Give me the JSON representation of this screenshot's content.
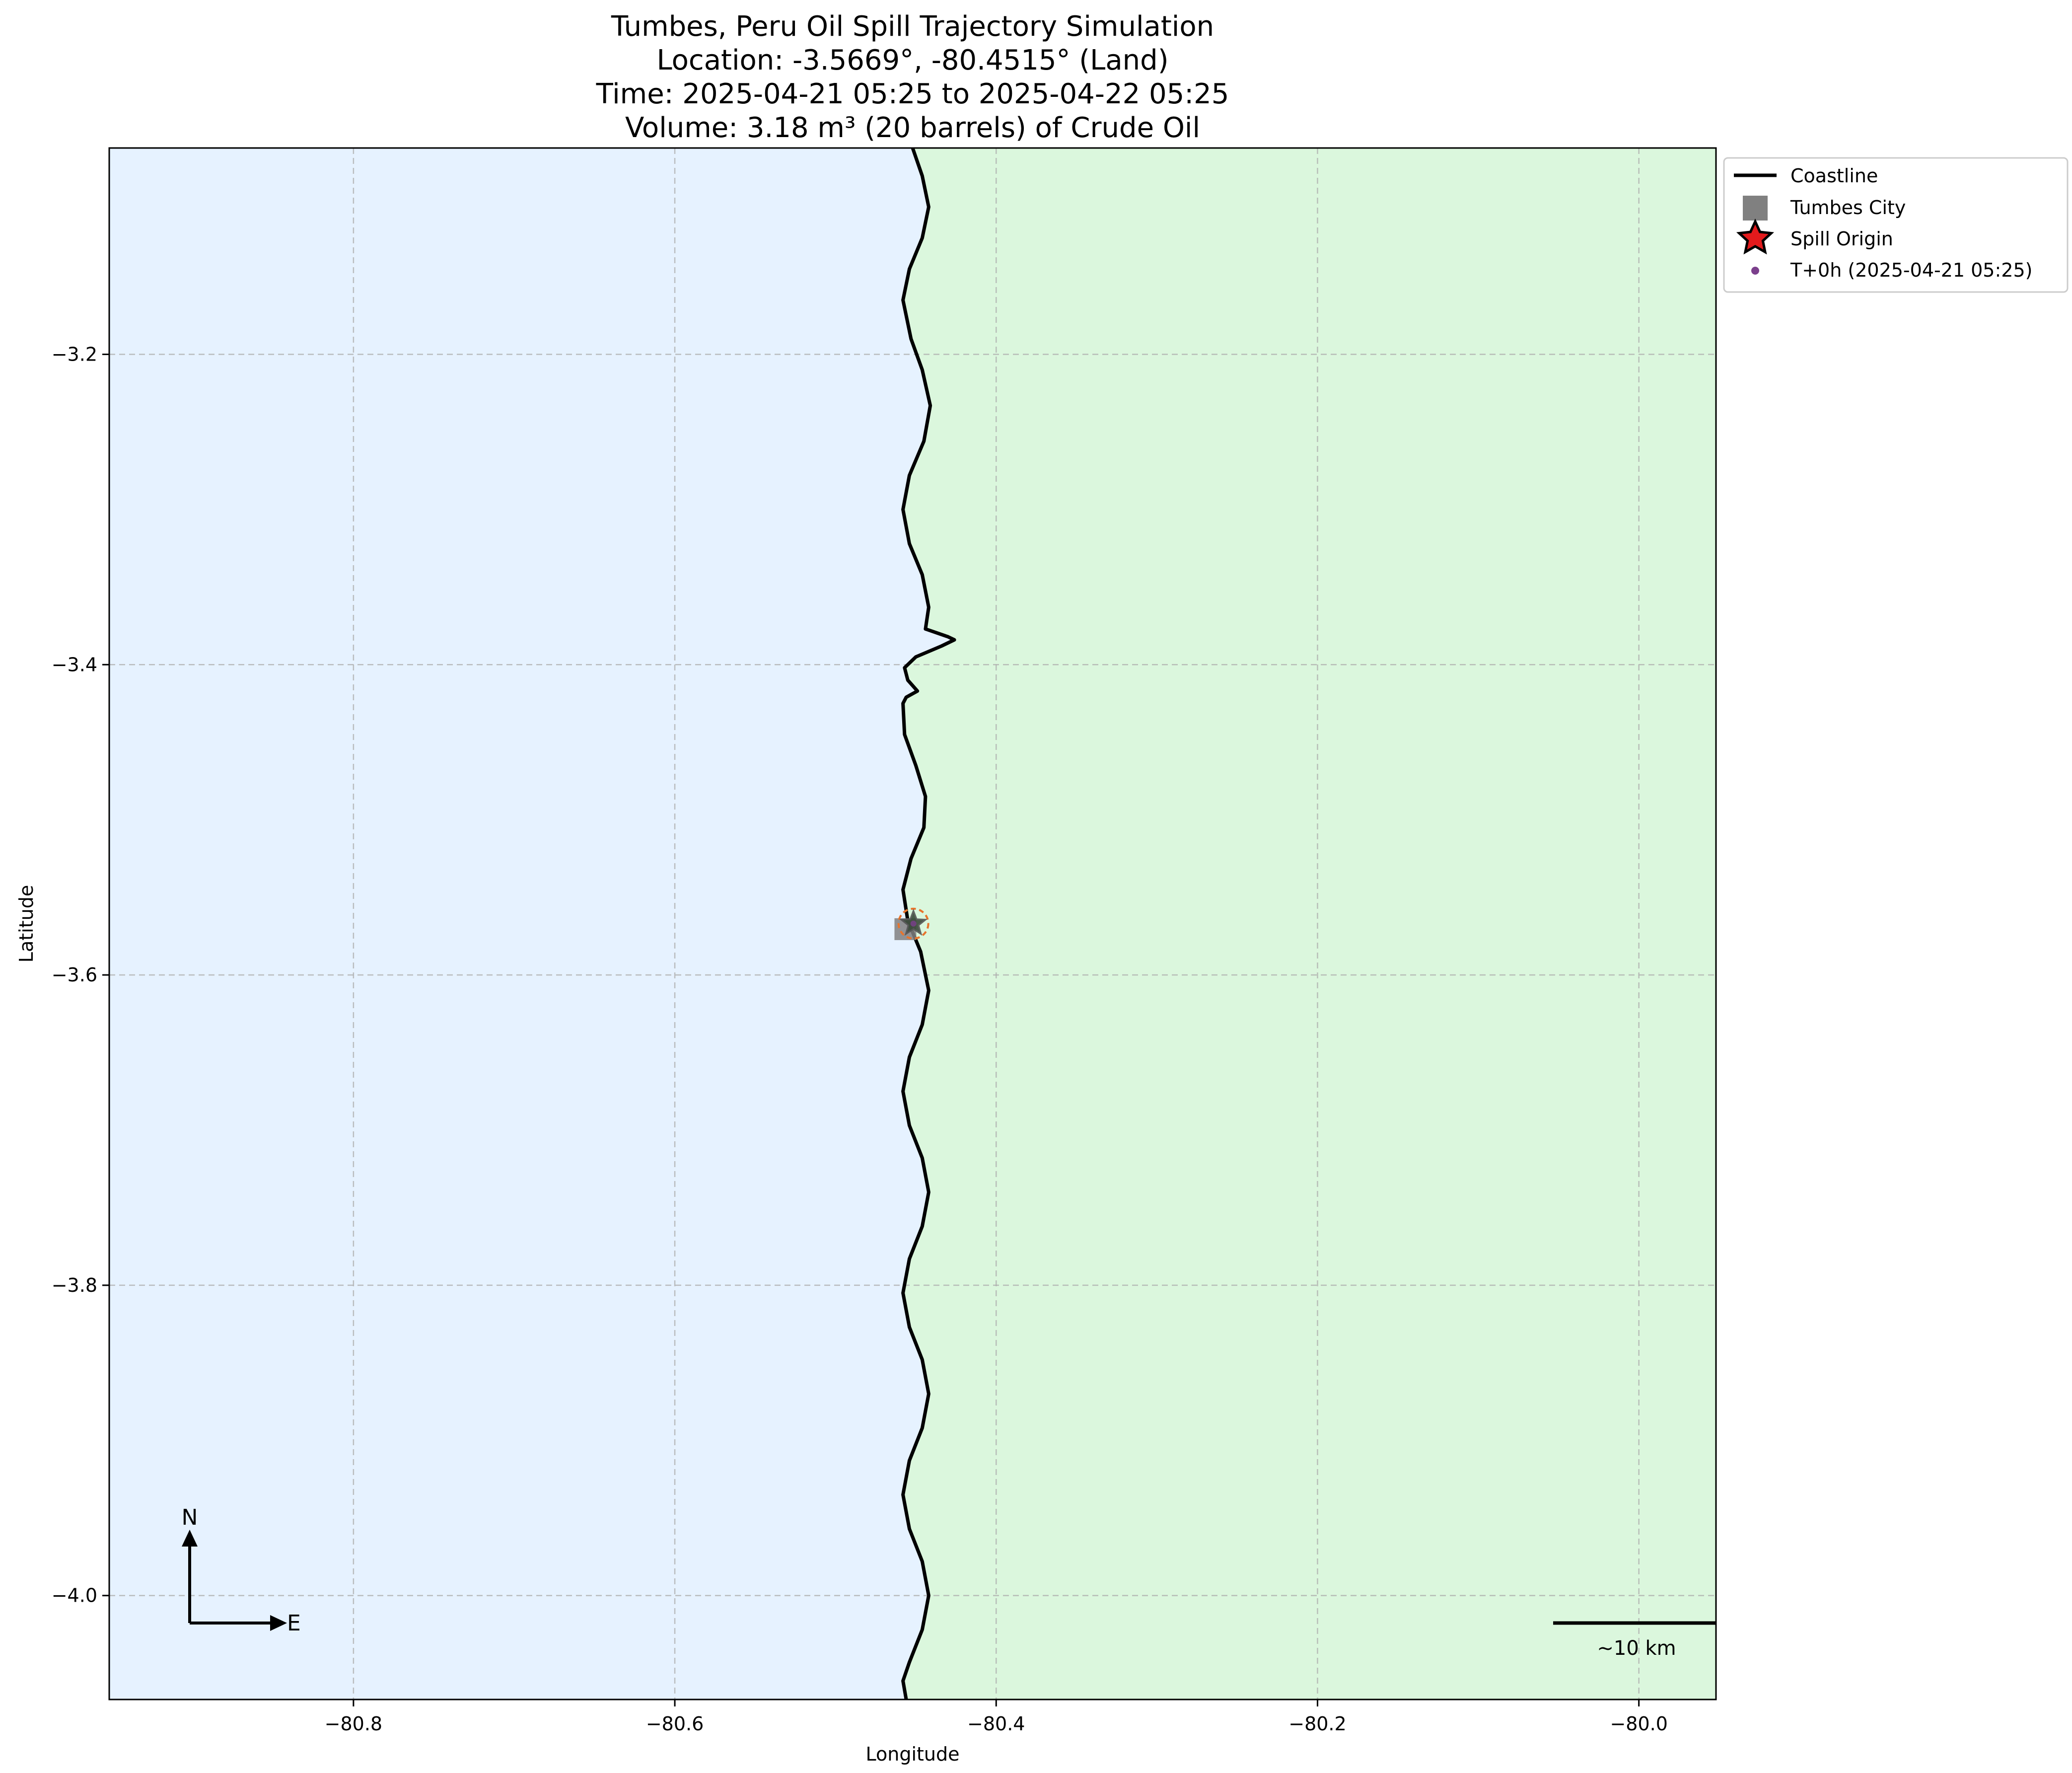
{
  "chart_data": {
    "type": "line",
    "title_lines": [
      "Tumbes, Peru Oil Spill Trajectory Simulation",
      "Location: -3.5669°, -80.4515° (Land)",
      "Time: 2025-04-21 05:25 to 2025-04-22 05:25",
      "Volume: 3.18 m³ (20 barrels) of Crude Oil"
    ],
    "xlabel": "Longitude",
    "ylabel": "Latitude",
    "xlim": [
      -80.952,
      -79.952
    ],
    "ylim": [
      -4.067,
      -3.067
    ],
    "xticks": [
      -80.8,
      -80.6,
      -80.4,
      -80.2,
      -80.0
    ],
    "xtick_labels": [
      "−80.8",
      "−80.6",
      "−80.4",
      "−80.2",
      "−80.0"
    ],
    "yticks": [
      -3.2,
      -3.4,
      -3.6,
      -3.8,
      -4.0
    ],
    "ytick_labels": [
      "−3.2",
      "−3.4",
      "−3.6",
      "−3.8",
      "−4.0"
    ],
    "grid": true,
    "legend_position": "outside upper right",
    "colors": {
      "sea": "#e6f2ff",
      "land": "#dbf7dd",
      "coastline": "#000000",
      "city": "#808080",
      "spill_origin": "#e31a1c",
      "particles": "#7b3f8c",
      "grid": "#b0b0b0"
    },
    "series": [
      {
        "name": "Coastline",
        "kind": "line",
        "points": [
          [
            -80.452,
            -3.067
          ],
          [
            -80.446,
            -3.085
          ],
          [
            -80.442,
            -3.105
          ],
          [
            -80.446,
            -3.125
          ],
          [
            -80.454,
            -3.145
          ],
          [
            -80.458,
            -3.165
          ],
          [
            -80.453,
            -3.19
          ],
          [
            -80.446,
            -3.21
          ],
          [
            -80.441,
            -3.233
          ],
          [
            -80.445,
            -3.256
          ],
          [
            -80.454,
            -3.278
          ],
          [
            -80.458,
            -3.3
          ],
          [
            -80.454,
            -3.322
          ],
          [
            -80.446,
            -3.342
          ],
          [
            -80.442,
            -3.363
          ],
          [
            -80.444,
            -3.377
          ],
          [
            -80.43,
            -3.382
          ],
          [
            -80.426,
            -3.384
          ],
          [
            -80.434,
            -3.388
          ],
          [
            -80.45,
            -3.395
          ],
          [
            -80.457,
            -3.402
          ],
          [
            -80.455,
            -3.41
          ],
          [
            -80.449,
            -3.417
          ],
          [
            -80.456,
            -3.421
          ],
          [
            -80.458,
            -3.425
          ],
          [
            -80.457,
            -3.445
          ],
          [
            -80.45,
            -3.465
          ],
          [
            -80.444,
            -3.485
          ],
          [
            -80.445,
            -3.505
          ],
          [
            -80.453,
            -3.525
          ],
          [
            -80.458,
            -3.545
          ],
          [
            -80.455,
            -3.565
          ],
          [
            -80.447,
            -3.585
          ],
          [
            -80.442,
            -3.61
          ],
          [
            -80.446,
            -3.632
          ],
          [
            -80.454,
            -3.653
          ],
          [
            -80.458,
            -3.675
          ],
          [
            -80.454,
            -3.697
          ],
          [
            -80.446,
            -3.718
          ],
          [
            -80.442,
            -3.74
          ],
          [
            -80.446,
            -3.762
          ],
          [
            -80.454,
            -3.783
          ],
          [
            -80.458,
            -3.805
          ],
          [
            -80.454,
            -3.827
          ],
          [
            -80.446,
            -3.848
          ],
          [
            -80.442,
            -3.87
          ],
          [
            -80.446,
            -3.892
          ],
          [
            -80.454,
            -3.913
          ],
          [
            -80.458,
            -3.935
          ],
          [
            -80.454,
            -3.957
          ],
          [
            -80.446,
            -3.978
          ],
          [
            -80.442,
            -4.0
          ],
          [
            -80.446,
            -4.022
          ],
          [
            -80.454,
            -4.043
          ],
          [
            -80.458,
            -4.055
          ],
          [
            -80.456,
            -4.067
          ]
        ]
      },
      {
        "name": "Tumbes City",
        "kind": "marker",
        "marker": "square",
        "lon": -80.4565,
        "lat": -3.5705
      },
      {
        "name": "Spill Origin",
        "kind": "marker",
        "marker": "star",
        "lon": -80.4515,
        "lat": -3.5669
      },
      {
        "name": "T+0h (2025-04-21 05:25)",
        "kind": "marker",
        "marker": "dot",
        "lon": -80.4515,
        "lat": -3.5669
      }
    ],
    "annotations": {
      "compass_north": "N",
      "compass_east": "E",
      "scale_bar_label": "~10 km"
    }
  }
}
